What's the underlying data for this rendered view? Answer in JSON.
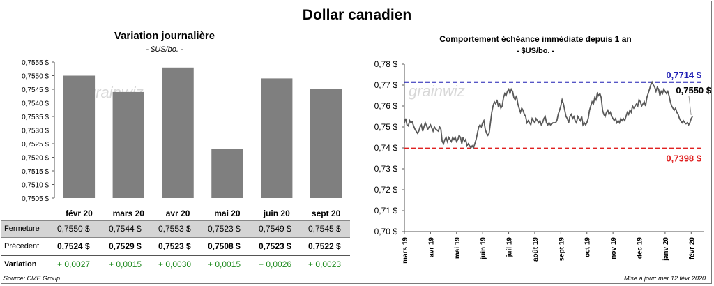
{
  "title": "Dollar canadien",
  "left_chart": {
    "title": "Variation  journalière",
    "subtitle": "- $US/bo. -"
  },
  "right_chart": {
    "title": "Comportement échéance immédiate depuis 1 an",
    "subtitle": "- $US/bo. -"
  },
  "watermark": "grainwiz",
  "table": {
    "rows": [
      {
        "label": "Fermeture",
        "values": [
          "0,7550  $",
          "0,7544  $",
          "0,7553  $",
          "0,7523  $",
          "0,7549  $",
          "0,7545  $"
        ]
      },
      {
        "label": "Précédent",
        "values": [
          "0,7524  $",
          "0,7529  $",
          "0,7523  $",
          "0,7508  $",
          "0,7523  $",
          "0,7522  $"
        ]
      },
      {
        "label": "Variation",
        "values": [
          "+ 0,0027",
          "+ 0,0015",
          "+ 0,0030",
          "+ 0,0015",
          "+ 0,0026",
          "+ 0,0023"
        ]
      }
    ]
  },
  "colors": {
    "bar": "#7f7f7f",
    "positive": "#1e8a1e",
    "high": "#1f1fb4",
    "low": "#e02020",
    "line": "#595959"
  },
  "footer": {
    "source": "Source: CME Group",
    "updated": "Mise à jour: mer 12 févr 2020"
  },
  "chart_data": [
    {
      "type": "bar",
      "title": "Variation  journalière",
      "subtitle": "- $US/bo. -",
      "categories": [
        "févr 20",
        "mars 20",
        "avr 20",
        "mai 20",
        "juin 20",
        "sept 20"
      ],
      "values": [
        0.755,
        0.7544,
        0.7553,
        0.7523,
        0.7549,
        0.7545
      ],
      "ylim": [
        0.7505,
        0.7555
      ],
      "yticks": [
        "0,7505 $",
        "0,7510 $",
        "0,7515 $",
        "0,7520 $",
        "0,7525 $",
        "0,7530 $",
        "0,7535 $",
        "0,7540 $",
        "0,7545 $",
        "0,7550 $",
        "0,7555 $"
      ]
    },
    {
      "type": "line",
      "title": "Comportement échéance immédiate depuis 1 an",
      "subtitle": "- $US/bo. -",
      "ylim": [
        0.7,
        0.78
      ],
      "yticks": [
        "0,70 $",
        "0,71 $",
        "0,72 $",
        "0,73 $",
        "0,74 $",
        "0,75 $",
        "0,76 $",
        "0,77 $",
        "0,78 $"
      ],
      "xticks": [
        "mars 19",
        "avr 19",
        "mai 19",
        "juin 19",
        "juil 19",
        "août 19",
        "sept 19",
        "oct 19",
        "nov 19",
        "déc 19",
        "janv 20",
        "févr 20"
      ],
      "x_range_months": [
        0,
        11.5
      ],
      "high": {
        "value": 0.7714,
        "label": "0,7714  $"
      },
      "low": {
        "value": 0.7398,
        "label": "0,7398  $"
      },
      "last": {
        "value": 0.755,
        "label": "0,7550 $"
      },
      "series": [
        {
          "name": "Dollar canadien",
          "points": [
            [
              0.0,
              0.752
            ],
            [
              0.05,
              0.754
            ],
            [
              0.1,
              0.751
            ],
            [
              0.15,
              0.7505
            ],
            [
              0.2,
              0.753
            ],
            [
              0.25,
              0.752
            ],
            [
              0.3,
              0.7525
            ],
            [
              0.35,
              0.7505
            ],
            [
              0.4,
              0.749
            ],
            [
              0.45,
              0.748
            ],
            [
              0.5,
              0.747
            ],
            [
              0.55,
              0.748
            ],
            [
              0.6,
              0.75
            ],
            [
              0.65,
              0.751
            ],
            [
              0.7,
              0.748
            ],
            [
              0.75,
              0.75
            ],
            [
              0.8,
              0.752
            ],
            [
              0.85,
              0.7505
            ],
            [
              0.9,
              0.749
            ],
            [
              0.95,
              0.75
            ],
            [
              1.0,
              0.751
            ],
            [
              1.05,
              0.7495
            ],
            [
              1.1,
              0.748
            ],
            [
              1.15,
              0.75
            ],
            [
              1.2,
              0.749
            ],
            [
              1.3,
              0.748
            ],
            [
              1.35,
              0.75
            ],
            [
              1.4,
              0.749
            ],
            [
              1.45,
              0.743
            ],
            [
              1.5,
              0.742
            ],
            [
              1.55,
              0.744
            ],
            [
              1.6,
              0.745
            ],
            [
              1.65,
              0.743
            ],
            [
              1.7,
              0.745
            ],
            [
              1.75,
              0.744
            ],
            [
              1.8,
              0.743
            ],
            [
              1.85,
              0.745
            ],
            [
              1.9,
              0.744
            ],
            [
              1.95,
              0.745
            ],
            [
              2.0,
              0.743
            ],
            [
              2.05,
              0.744
            ],
            [
              2.1,
              0.746
            ],
            [
              2.15,
              0.745
            ],
            [
              2.2,
              0.742
            ],
            [
              2.25,
              0.745
            ],
            [
              2.3,
              0.743
            ],
            [
              2.35,
              0.744
            ],
            [
              2.4,
              0.741
            ],
            [
              2.45,
              0.742
            ],
            [
              2.5,
              0.741
            ],
            [
              2.55,
              0.74
            ],
            [
              2.6,
              0.741
            ],
            [
              2.65,
              0.74
            ],
            [
              2.7,
              0.742
            ],
            [
              2.75,
              0.744
            ],
            [
              2.8,
              0.747
            ],
            [
              2.85,
              0.75
            ],
            [
              2.9,
              0.751
            ],
            [
              2.95,
              0.75
            ],
            [
              3.0,
              0.752
            ],
            [
              3.05,
              0.753
            ],
            [
              3.1,
              0.749
            ],
            [
              3.15,
              0.747
            ],
            [
              3.2,
              0.746
            ],
            [
              3.25,
              0.747
            ],
            [
              3.3,
              0.752
            ],
            [
              3.35,
              0.757
            ],
            [
              3.4,
              0.76
            ],
            [
              3.45,
              0.762
            ],
            [
              3.5,
              0.761
            ],
            [
              3.55,
              0.763
            ],
            [
              3.6,
              0.76
            ],
            [
              3.65,
              0.761
            ],
            [
              3.7,
              0.759
            ],
            [
              3.75,
              0.76
            ],
            [
              3.8,
              0.764
            ],
            [
              3.85,
              0.766
            ],
            [
              3.9,
              0.765
            ],
            [
              3.95,
              0.767
            ],
            [
              4.0,
              0.768
            ],
            [
              4.05,
              0.766
            ],
            [
              4.1,
              0.768
            ],
            [
              4.15,
              0.767
            ],
            [
              4.2,
              0.764
            ],
            [
              4.25,
              0.763
            ],
            [
              4.3,
              0.765
            ],
            [
              4.35,
              0.761
            ],
            [
              4.4,
              0.759
            ],
            [
              4.45,
              0.757
            ],
            [
              4.5,
              0.759
            ],
            [
              4.55,
              0.758
            ],
            [
              4.6,
              0.756
            ],
            [
              4.65,
              0.755
            ],
            [
              4.7,
              0.752
            ],
            [
              4.75,
              0.753
            ],
            [
              4.8,
              0.752
            ],
            [
              4.85,
              0.751
            ],
            [
              4.9,
              0.754
            ],
            [
              4.95,
              0.753
            ],
            [
              5.0,
              0.752
            ],
            [
              5.05,
              0.754
            ],
            [
              5.1,
              0.753
            ],
            [
              5.15,
              0.752
            ],
            [
              5.2,
              0.753
            ],
            [
              5.25,
              0.751
            ],
            [
              5.3,
              0.752
            ],
            [
              5.35,
              0.754
            ],
            [
              5.4,
              0.755
            ],
            [
              5.45,
              0.752
            ],
            [
              5.5,
              0.751
            ],
            [
              5.55,
              0.752
            ],
            [
              5.6,
              0.751
            ],
            [
              5.65,
              0.7515
            ],
            [
              5.7,
              0.752
            ],
            [
              5.8,
              0.752
            ],
            [
              5.85,
              0.753
            ],
            [
              5.9,
              0.756
            ],
            [
              5.95,
              0.758
            ],
            [
              6.0,
              0.76
            ],
            [
              6.05,
              0.763
            ],
            [
              6.1,
              0.761
            ],
            [
              6.15,
              0.758
            ],
            [
              6.2,
              0.755
            ],
            [
              6.25,
              0.754
            ],
            [
              6.3,
              0.752
            ],
            [
              6.35,
              0.755
            ],
            [
              6.4,
              0.756
            ],
            [
              6.45,
              0.754
            ],
            [
              6.5,
              0.755
            ],
            [
              6.55,
              0.753
            ],
            [
              6.6,
              0.752
            ],
            [
              6.65,
              0.755
            ],
            [
              6.7,
              0.754
            ],
            [
              6.75,
              0.753
            ],
            [
              6.8,
              0.755
            ],
            [
              6.85,
              0.751
            ],
            [
              6.9,
              0.752
            ],
            [
              6.95,
              0.751
            ],
            [
              7.0,
              0.752
            ],
            [
              7.05,
              0.754
            ],
            [
              7.1,
              0.758
            ],
            [
              7.15,
              0.76
            ],
            [
              7.2,
              0.762
            ],
            [
              7.25,
              0.761
            ],
            [
              7.3,
              0.764
            ],
            [
              7.35,
              0.763
            ],
            [
              7.4,
              0.766
            ],
            [
              7.45,
              0.765
            ],
            [
              7.5,
              0.766
            ],
            [
              7.55,
              0.764
            ],
            [
              7.6,
              0.758
            ],
            [
              7.65,
              0.756
            ],
            [
              7.7,
              0.755
            ],
            [
              7.75,
              0.757
            ],
            [
              7.8,
              0.758
            ],
            [
              7.85,
              0.756
            ],
            [
              7.9,
              0.757
            ],
            [
              7.95,
              0.755
            ],
            [
              8.0,
              0.754
            ],
            [
              8.05,
              0.753
            ],
            [
              8.1,
              0.754
            ],
            [
              8.15,
              0.752
            ],
            [
              8.2,
              0.753
            ],
            [
              8.25,
              0.752
            ],
            [
              8.3,
              0.754
            ],
            [
              8.35,
              0.753
            ],
            [
              8.4,
              0.754
            ],
            [
              8.45,
              0.753
            ],
            [
              8.5,
              0.755
            ],
            [
              8.55,
              0.757
            ],
            [
              8.6,
              0.756
            ],
            [
              8.65,
              0.758
            ],
            [
              8.7,
              0.757
            ],
            [
              8.75,
              0.76
            ],
            [
              8.8,
              0.759
            ],
            [
              8.85,
              0.76
            ],
            [
              8.9,
              0.761
            ],
            [
              8.95,
              0.76
            ],
            [
              9.0,
              0.763
            ],
            [
              9.05,
              0.762
            ],
            [
              9.1,
              0.76
            ],
            [
              9.15,
              0.761
            ],
            [
              9.2,
              0.762
            ],
            [
              9.25,
              0.76
            ],
            [
              9.3,
              0.764
            ],
            [
              9.35,
              0.766
            ],
            [
              9.4,
              0.768
            ],
            [
              9.45,
              0.77
            ],
            [
              9.5,
              0.7714
            ],
            [
              9.55,
              0.77
            ],
            [
              9.6,
              0.769
            ],
            [
              9.65,
              0.767
            ],
            [
              9.7,
              0.769
            ],
            [
              9.75,
              0.768
            ],
            [
              9.8,
              0.765
            ],
            [
              9.85,
              0.767
            ],
            [
              9.9,
              0.766
            ],
            [
              9.95,
              0.768
            ],
            [
              10.0,
              0.767
            ],
            [
              10.05,
              0.766
            ],
            [
              10.1,
              0.767
            ],
            [
              10.15,
              0.765
            ],
            [
              10.2,
              0.762
            ],
            [
              10.25,
              0.76
            ],
            [
              10.3,
              0.759
            ],
            [
              10.35,
              0.758
            ],
            [
              10.4,
              0.759
            ],
            [
              10.45,
              0.757
            ],
            [
              10.5,
              0.756
            ],
            [
              10.55,
              0.754
            ],
            [
              10.6,
              0.753
            ],
            [
              10.65,
              0.752
            ],
            [
              10.7,
              0.753
            ],
            [
              10.75,
              0.752
            ],
            [
              10.8,
              0.7515
            ],
            [
              10.85,
              0.752
            ],
            [
              10.9,
              0.751
            ],
            [
              10.95,
              0.752
            ],
            [
              11.0,
              0.754
            ],
            [
              11.05,
              0.755
            ]
          ]
        }
      ]
    }
  ]
}
